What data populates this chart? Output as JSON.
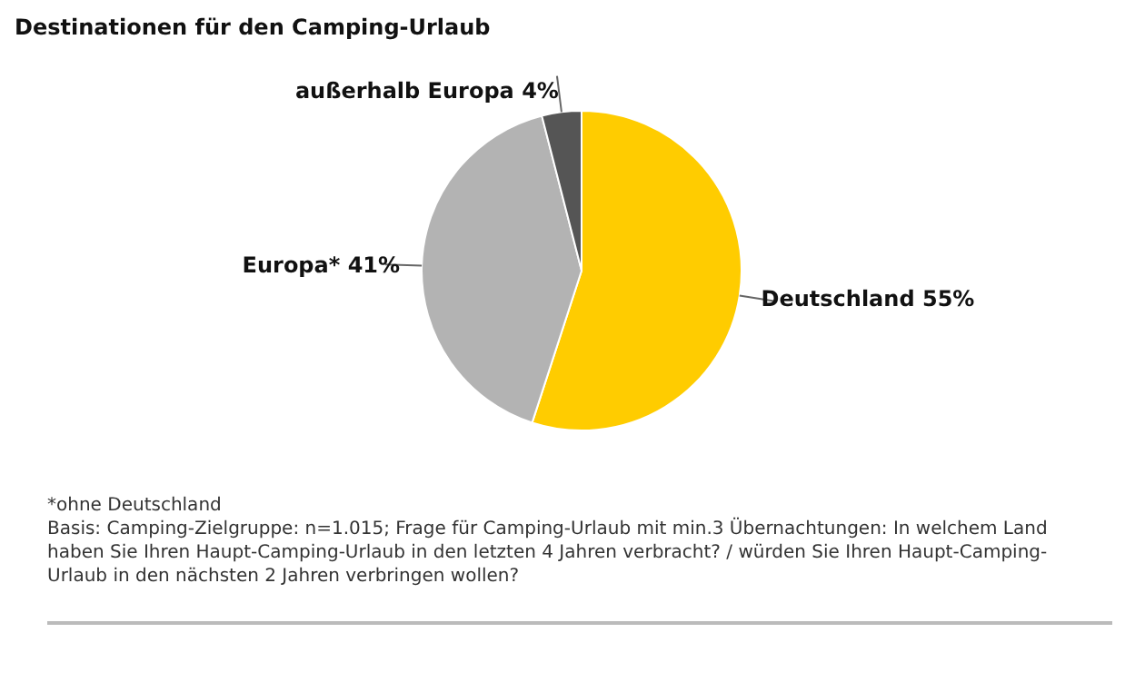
{
  "chart_data": {
    "type": "pie",
    "title": "Destinationen für den Camping-Urlaub",
    "categories": [
      "Deutschland",
      "Europa*",
      "außerhalb Europa"
    ],
    "values": [
      55,
      41,
      4
    ],
    "value_labels": [
      "55%",
      "41%",
      "4%"
    ],
    "colors": [
      "#ffcc00",
      "#b3b3b3",
      "#555555"
    ],
    "legend": false,
    "annotations": [
      "*ohne Deutschland",
      "Basis: Camping-Zielgruppe: n=1.015; Frage für Camping-Urlaub mit min.3 Übernachtungen: In welchem Land haben Sie Ihren Haupt-Camping-Urlaub in den letzten 4 Jahren verbracht? / würden Sie Ihren Haupt-Camping-Urlaub in den nächsten 2 Jahren  verbringen wollen?"
    ]
  }
}
